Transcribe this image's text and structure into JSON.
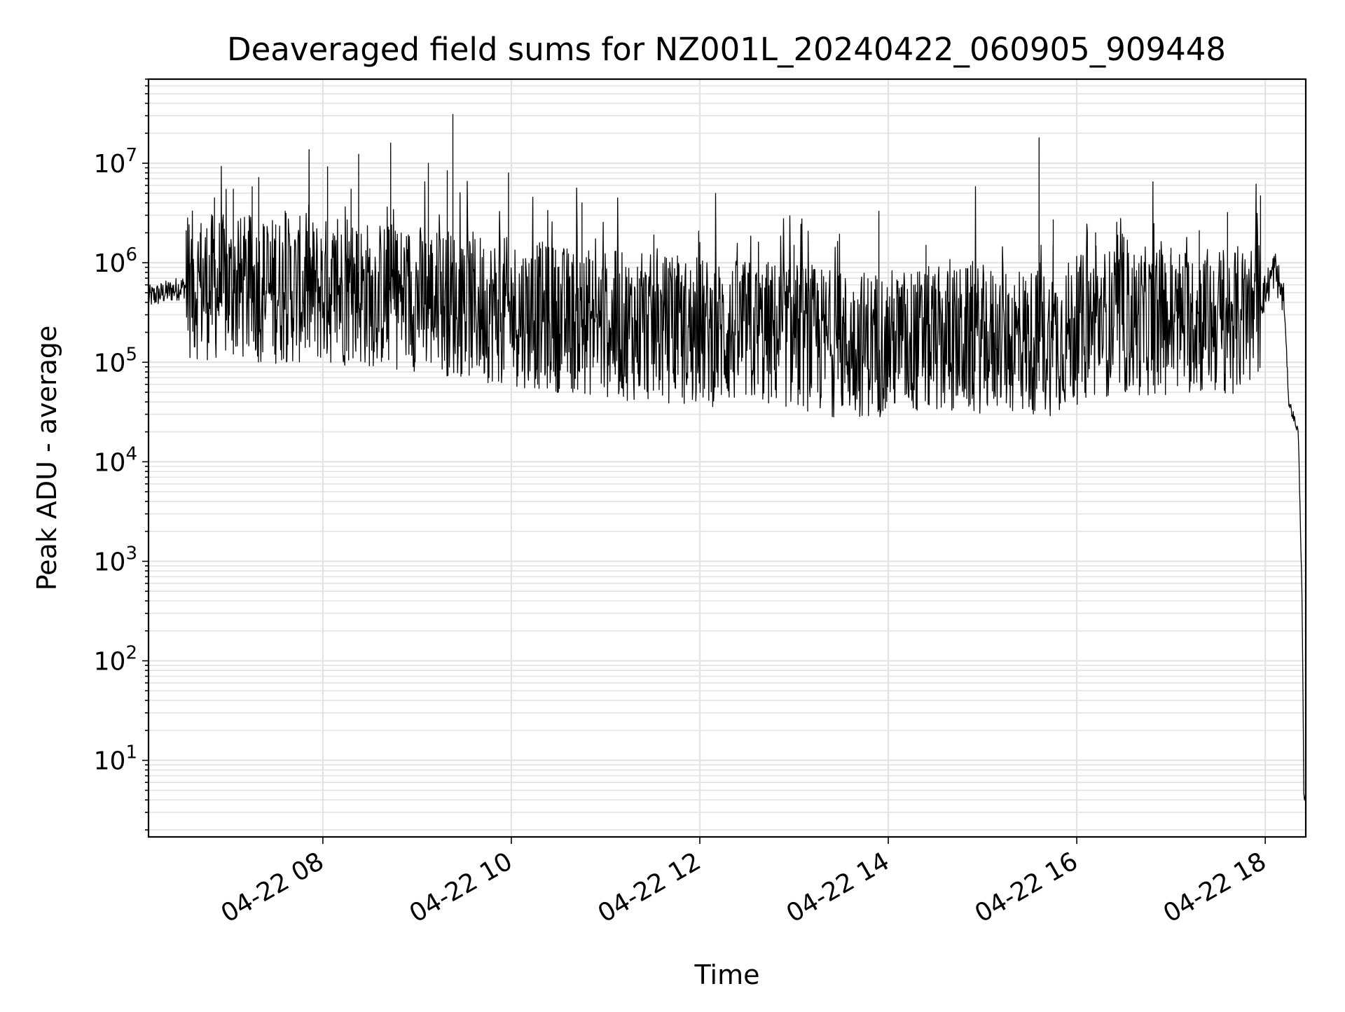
{
  "chart_data": {
    "type": "line",
    "title": "Deaveraged field sums for NZ001L_20240422_060905_909448",
    "xlabel": "Time",
    "ylabel": "Peak ADU - average",
    "x_ticks": [
      "04-22 08",
      "04-22 10",
      "04-22 12",
      "04-22 14",
      "04-22 16",
      "04-22 18"
    ],
    "x_tick_hours": [
      8,
      10,
      12,
      14,
      16,
      18
    ],
    "x_range_hours": [
      6.15,
      18.43
    ],
    "y_scale": "log",
    "y_ticks": [
      {
        "base": "10",
        "exp": "1",
        "value": 10
      },
      {
        "base": "10",
        "exp": "2",
        "value": 100
      },
      {
        "base": "10",
        "exp": "3",
        "value": 1000
      },
      {
        "base": "10",
        "exp": "4",
        "value": 10000
      },
      {
        "base": "10",
        "exp": "5",
        "value": 100000
      },
      {
        "base": "10",
        "exp": "6",
        "value": 1000000
      },
      {
        "base": "10",
        "exp": "7",
        "value": 10000000
      }
    ],
    "ylim": [
      1.7,
      70000000
    ],
    "grid": true,
    "line_color": "#000000",
    "grid_color": "#e3e3e3",
    "series": [
      {
        "baseline_profile": [
          [
            6.15,
            450000
          ],
          [
            6.6,
            600000
          ],
          [
            7.0,
            550000
          ],
          [
            8.0,
            520000
          ],
          [
            9.0,
            450000
          ],
          [
            10.0,
            320000
          ],
          [
            11.0,
            240000
          ],
          [
            12.0,
            200000
          ],
          [
            13.0,
            190000
          ],
          [
            13.5,
            150000
          ],
          [
            14.0,
            160000
          ],
          [
            15.0,
            170000
          ],
          [
            15.7,
            160000
          ],
          [
            16.2,
            250000
          ],
          [
            17.0,
            260000
          ],
          [
            17.8,
            270000
          ],
          [
            18.0,
            500000
          ],
          [
            18.1,
            900000
          ],
          [
            18.2,
            400000
          ],
          [
            18.25,
            40000
          ],
          [
            18.35,
            20000
          ],
          [
            18.39,
            500
          ],
          [
            18.41,
            4
          ],
          [
            18.43,
            4
          ]
        ],
        "spikes": [
          [
            6.55,
            2100000
          ],
          [
            6.7,
            2000000
          ],
          [
            6.85,
            4500000
          ],
          [
            7.05,
            5500000
          ],
          [
            7.25,
            5800000
          ],
          [
            7.32,
            7200000
          ],
          [
            7.5,
            2400000
          ],
          [
            7.6,
            3300000
          ],
          [
            7.85,
            3800000
          ],
          [
            8.05,
            4200000
          ],
          [
            8.05,
            9200000
          ],
          [
            8.3,
            5500000
          ],
          [
            8.38,
            12300000
          ],
          [
            8.72,
            16000000
          ],
          [
            9.12,
            10000000
          ],
          [
            9.32,
            8400000
          ],
          [
            9.38,
            31000000
          ],
          [
            9.97,
            8000000
          ],
          [
            10.75,
            4000000
          ],
          [
            11.1,
            1300000
          ],
          [
            12.0,
            1600000
          ],
          [
            13.0,
            1500000
          ],
          [
            13.9,
            3300000
          ],
          [
            14.4,
            1500000
          ],
          [
            15.6,
            18000000
          ],
          [
            15.75,
            2700000
          ],
          [
            16.2,
            2000000
          ],
          [
            16.5,
            1800000
          ],
          [
            17.0,
            1400000
          ],
          [
            17.3,
            2100000
          ],
          [
            17.6,
            3200000
          ],
          [
            17.95,
            4700000
          ]
        ]
      }
    ]
  }
}
